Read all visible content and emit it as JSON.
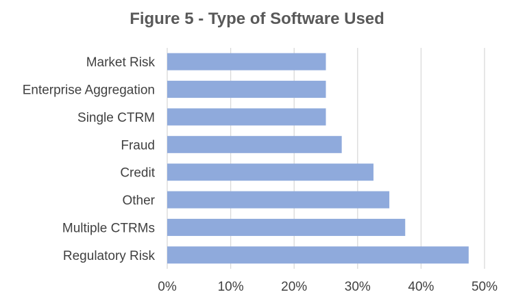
{
  "chart_data": {
    "type": "bar",
    "orientation": "horizontal",
    "title": "Figure 5 - Type of Software Used",
    "categories": [
      "Market Risk",
      "Enterprise Aggregation",
      "Single CTRM",
      "Fraud",
      "Credit",
      "Other",
      "Multiple CTRMs",
      "Regulatory Risk"
    ],
    "values": [
      0.25,
      0.25,
      0.25,
      0.275,
      0.325,
      0.35,
      0.375,
      0.475
    ],
    "xlim": [
      0,
      0.5
    ],
    "xticks": [
      0,
      0.1,
      0.2,
      0.3,
      0.4,
      0.5
    ],
    "xtick_labels": [
      "0%",
      "10%",
      "20%",
      "30%",
      "40%",
      "50%"
    ],
    "xlabel": "",
    "ylabel": "",
    "grid": "vertical",
    "legend": "none",
    "bar_color": "#8faadc"
  }
}
